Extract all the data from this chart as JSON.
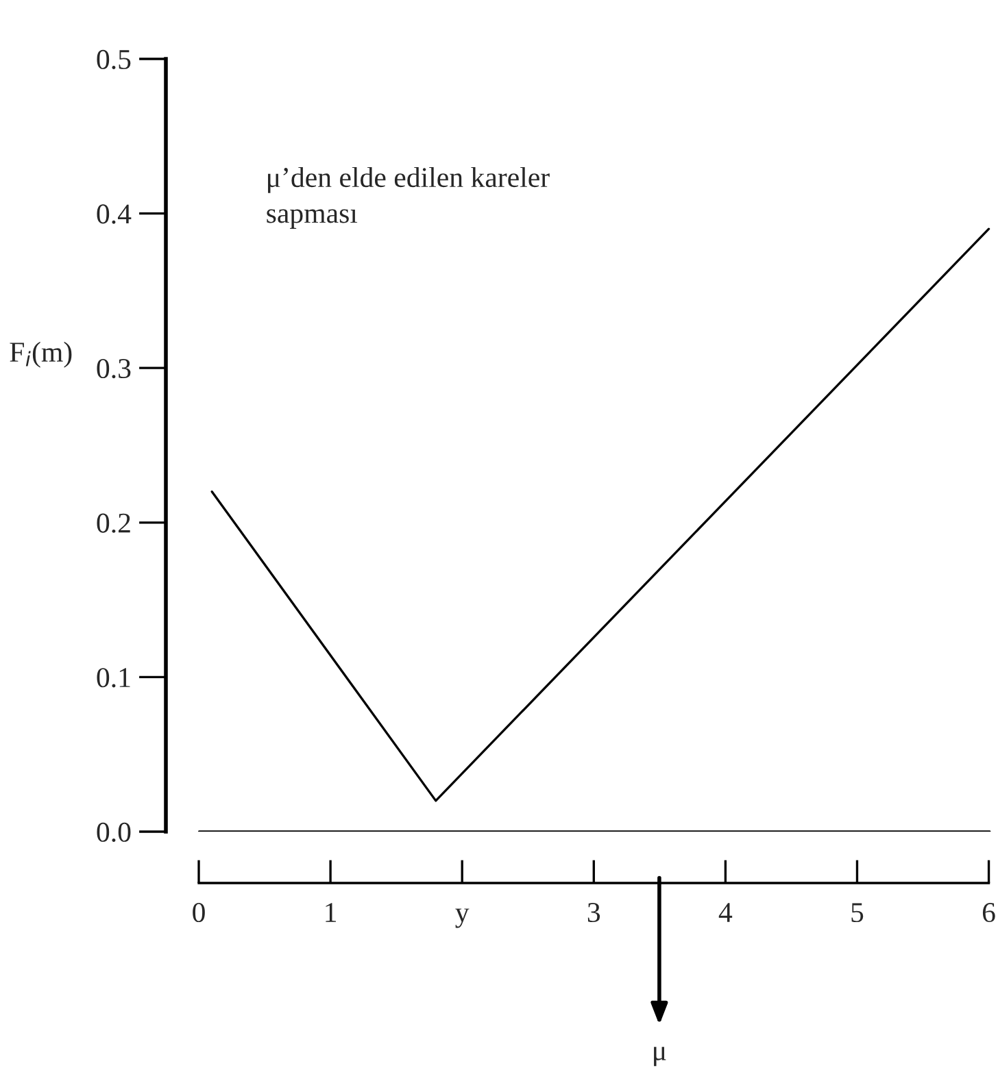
{
  "chart_data": {
    "type": "line",
    "ylabel": "F$_{i}$(m)",
    "x": [
      0.1,
      1.8,
      6.0
    ],
    "series": [
      {
        "color": "#000000",
        "values": [
          0.22,
          0.02,
          0.39
        ]
      }
    ],
    "xlim": [
      -0.25,
      6.07
    ],
    "ylim": [
      0,
      0.5
    ],
    "xticks": [
      0,
      1,
      {
        "value": 2,
        "label": "y"
      },
      3,
      4,
      5,
      6
    ],
    "yticks": [
      {
        "value": 0,
        "label": "0.0"
      },
      {
        "value": 0.1,
        "label": "0.1"
      },
      {
        "value": 0.2,
        "label": "0.2"
      },
      {
        "value": 0.3,
        "label": "0.3"
      },
      {
        "value": 0.4,
        "label": "0.4"
      },
      {
        "value": 0.5,
        "label": "0.5"
      }
    ],
    "ref_lines": [
      {
        "axis": "y",
        "value": 0,
        "color": "#000000"
      }
    ],
    "annotations": [
      "μ’den elde edilen kareler\nsapması",
      "μ"
    ],
    "grid": false,
    "legend": false,
    "marker": "none",
    "line_style": "solid"
  }
}
